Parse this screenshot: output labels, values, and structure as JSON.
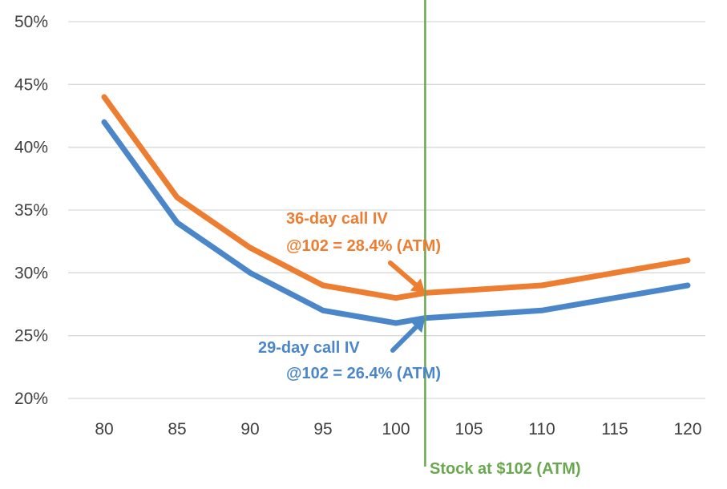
{
  "chart_data": {
    "type": "line",
    "x": [
      80,
      85,
      90,
      95,
      100,
      102,
      110,
      120
    ],
    "series": [
      {
        "name": "36-day call IV",
        "color": "#ED7D31",
        "values": [
          44,
          36,
          32,
          29,
          28,
          28.4,
          29,
          31
        ]
      },
      {
        "name": "29-day call IV",
        "color": "#4A86C8",
        "values": [
          42,
          34,
          30,
          27,
          26,
          26.4,
          27,
          29
        ]
      }
    ],
    "xticks": [
      80,
      85,
      90,
      95,
      100,
      105,
      110,
      115,
      120
    ],
    "xtick_labels": [
      "80",
      "85",
      "90",
      "95",
      "100",
      "105",
      "110",
      "115",
      "120"
    ],
    "yticks": [
      20,
      25,
      30,
      35,
      40,
      45,
      50
    ],
    "ytick_labels": [
      "20%",
      "25%",
      "30%",
      "35%",
      "40%",
      "45%",
      "50%"
    ],
    "xlim": [
      80,
      120
    ],
    "ylim": [
      20,
      50
    ],
    "grid": "horizontal",
    "title": "",
    "xlabel": "",
    "ylabel": "",
    "vertical_marker": {
      "x": 102,
      "label": "Stock at $102 (ATM)",
      "color": "#6AA84F"
    },
    "annotations": [
      {
        "line1": "36-day call IV",
        "line2": "@102 = 28.4% (ATM)",
        "color": "#ED7D31",
        "target_x": 102,
        "target_y": 28.4
      },
      {
        "line1": "29-day call IV",
        "line2": "@102 = 26.4% (ATM)",
        "color": "#4A86C8",
        "target_x": 102,
        "target_y": 26.4
      }
    ]
  }
}
